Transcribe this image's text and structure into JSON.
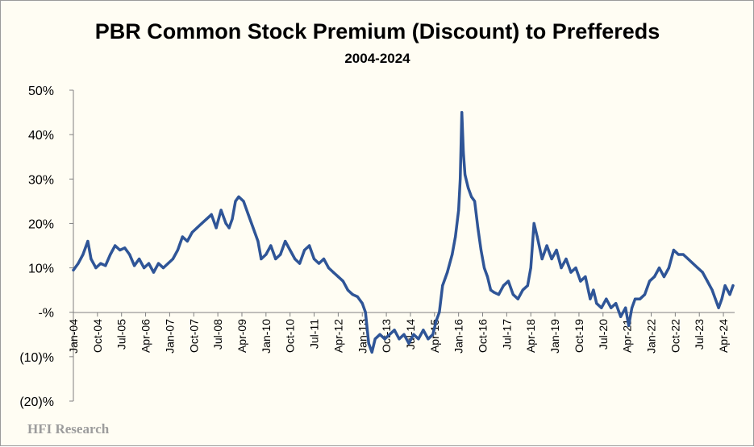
{
  "watermark": "HFI Research",
  "chart_data": {
    "type": "line",
    "title": "PBR Common Stock Premium (Discount) to Preffereds",
    "subtitle": "2004-2024",
    "xlabel": "",
    "ylabel": "",
    "ylim": [
      -20,
      50
    ],
    "y_ticks": [
      {
        "value": 50,
        "label": "50%"
      },
      {
        "value": 40,
        "label": "40%"
      },
      {
        "value": 30,
        "label": "30%"
      },
      {
        "value": 20,
        "label": "20%"
      },
      {
        "value": 10,
        "label": "10%"
      },
      {
        "value": 0,
        "label": "-%"
      },
      {
        "value": -10,
        "label": "(10)%"
      },
      {
        "value": -20,
        "label": "(20)%"
      }
    ],
    "x_range": [
      2004.0,
      2024.6
    ],
    "x_ticks": [
      {
        "value": 2004.0,
        "label": "Jan-04"
      },
      {
        "value": 2004.75,
        "label": "Oct-04"
      },
      {
        "value": 2005.5,
        "label": "Jul-05"
      },
      {
        "value": 2006.25,
        "label": "Apr-06"
      },
      {
        "value": 2007.0,
        "label": "Jan-07"
      },
      {
        "value": 2007.75,
        "label": "Oct-07"
      },
      {
        "value": 2008.5,
        "label": "Jul-08"
      },
      {
        "value": 2009.25,
        "label": "Apr-09"
      },
      {
        "value": 2010.0,
        "label": "Jan-10"
      },
      {
        "value": 2010.75,
        "label": "Oct-10"
      },
      {
        "value": 2011.5,
        "label": "Jul-11"
      },
      {
        "value": 2012.25,
        "label": "Apr-12"
      },
      {
        "value": 2013.0,
        "label": "Jan-13"
      },
      {
        "value": 2013.75,
        "label": "Oct-13"
      },
      {
        "value": 2014.5,
        "label": "Jul-14"
      },
      {
        "value": 2015.25,
        "label": "Apr-15"
      },
      {
        "value": 2016.0,
        "label": "Jan-16"
      },
      {
        "value": 2016.75,
        "label": "Oct-16"
      },
      {
        "value": 2017.5,
        "label": "Jul-17"
      },
      {
        "value": 2018.25,
        "label": "Apr-18"
      },
      {
        "value": 2019.0,
        "label": "Jan-19"
      },
      {
        "value": 2019.75,
        "label": "Oct-19"
      },
      {
        "value": 2020.5,
        "label": "Jul-20"
      },
      {
        "value": 2021.25,
        "label": "Apr-21"
      },
      {
        "value": 2022.0,
        "label": "Jan-22"
      },
      {
        "value": 2022.75,
        "label": "Oct-22"
      },
      {
        "value": 2023.5,
        "label": "Jul-23"
      },
      {
        "value": 2024.25,
        "label": "Apr-24"
      }
    ],
    "series": [
      {
        "name": "PBR common premium (discount) to preferreds",
        "color": "#2f5597",
        "x": [
          2004.0,
          2004.15,
          2004.3,
          2004.45,
          2004.55,
          2004.7,
          2004.85,
          2005.0,
          2005.15,
          2005.3,
          2005.45,
          2005.6,
          2005.75,
          2005.9,
          2006.05,
          2006.2,
          2006.35,
          2006.5,
          2006.65,
          2006.8,
          2006.95,
          2007.1,
          2007.25,
          2007.4,
          2007.55,
          2007.7,
          2007.85,
          2008.0,
          2008.15,
          2008.3,
          2008.45,
          2008.6,
          2008.75,
          2008.85,
          2008.95,
          2009.05,
          2009.15,
          2009.3,
          2009.45,
          2009.6,
          2009.75,
          2009.85,
          2010.0,
          2010.15,
          2010.3,
          2010.45,
          2010.6,
          2010.75,
          2010.9,
          2011.05,
          2011.2,
          2011.35,
          2011.5,
          2011.65,
          2011.8,
          2011.95,
          2012.1,
          2012.25,
          2012.4,
          2012.55,
          2012.7,
          2012.85,
          2013.0,
          2013.1,
          2013.2,
          2013.3,
          2013.4,
          2013.55,
          2013.7,
          2013.85,
          2014.0,
          2014.15,
          2014.3,
          2014.45,
          2014.6,
          2014.75,
          2014.9,
          2015.05,
          2015.2,
          2015.3,
          2015.4,
          2015.5,
          2015.65,
          2015.8,
          2015.9,
          2016.0,
          2016.05,
          2016.1,
          2016.15,
          2016.2,
          2016.3,
          2016.4,
          2016.5,
          2016.6,
          2016.7,
          2016.8,
          2016.9,
          2017.0,
          2017.1,
          2017.25,
          2017.4,
          2017.55,
          2017.7,
          2017.85,
          2018.0,
          2018.15,
          2018.25,
          2018.35,
          2018.45,
          2018.6,
          2018.75,
          2018.9,
          2019.05,
          2019.2,
          2019.35,
          2019.5,
          2019.65,
          2019.8,
          2019.95,
          2020.1,
          2020.2,
          2020.3,
          2020.45,
          2020.6,
          2020.75,
          2020.9,
          2021.05,
          2021.2,
          2021.3,
          2021.4,
          2021.5,
          2021.65,
          2021.8,
          2021.95,
          2022.1,
          2022.25,
          2022.4,
          2022.55,
          2022.7,
          2022.85,
          2023.0,
          2023.15,
          2023.3,
          2023.45,
          2023.6,
          2023.75,
          2023.9,
          2024.0,
          2024.1,
          2024.2,
          2024.3,
          2024.45,
          2024.55
        ],
        "values": [
          9.5,
          11,
          13,
          16,
          12,
          10,
          11,
          10.5,
          13,
          15,
          14,
          14.5,
          13,
          10.5,
          12,
          10,
          11,
          9,
          11,
          10,
          11,
          12,
          14,
          17,
          16,
          18,
          19,
          20,
          21,
          22,
          19,
          23,
          20,
          19,
          21,
          25,
          26,
          25,
          22,
          19,
          16,
          12,
          13,
          15,
          12,
          13,
          16,
          14,
          12,
          11,
          14,
          15,
          12,
          11,
          12,
          10,
          9,
          8,
          7,
          5,
          4,
          3.5,
          2,
          0,
          -7,
          -9,
          -6,
          -5,
          -6,
          -5,
          -4,
          -6,
          -5,
          -7,
          -5,
          -6,
          -4,
          -6,
          -5,
          -2,
          0,
          6,
          9,
          13,
          17,
          23,
          30,
          45,
          36,
          31,
          28,
          26,
          25,
          19,
          14,
          10,
          8,
          5,
          4.5,
          4,
          6,
          7,
          4,
          3,
          5,
          6,
          10,
          20,
          17,
          12,
          15,
          12,
          14,
          10,
          12,
          9,
          10,
          7,
          8,
          3,
          5,
          2,
          1,
          3,
          1,
          2,
          -1,
          1,
          -3,
          1,
          3,
          3,
          4,
          7,
          8,
          10,
          8,
          10,
          14,
          13,
          13,
          12,
          11,
          10,
          9,
          7,
          5,
          3,
          1,
          3,
          6,
          4,
          6
        ]
      }
    ]
  }
}
